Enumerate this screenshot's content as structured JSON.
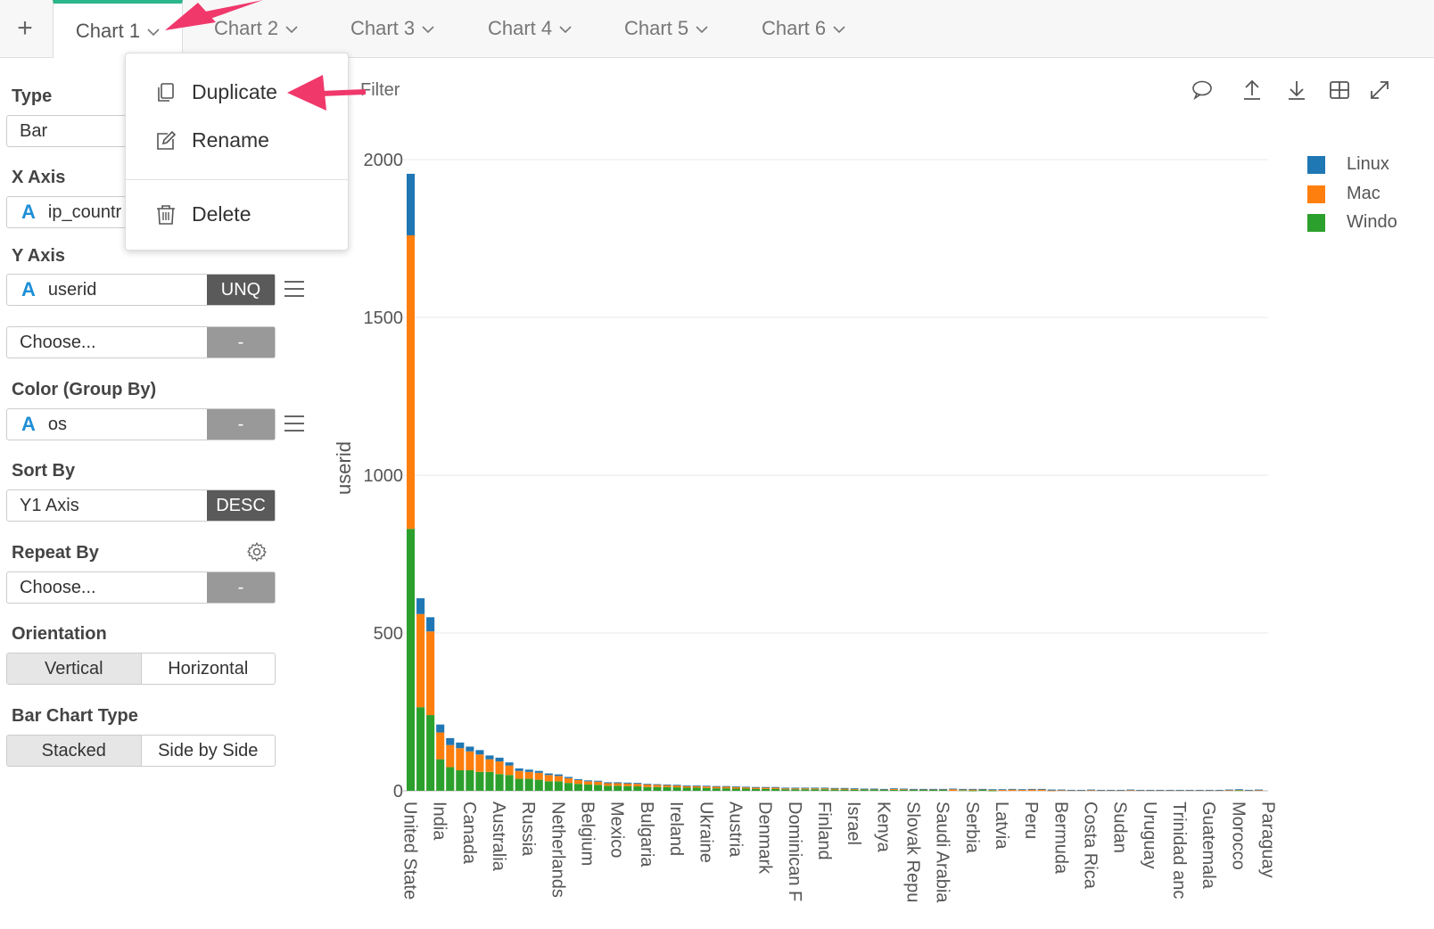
{
  "tabs": {
    "add_label": "+",
    "items": [
      {
        "label": "Chart 1"
      },
      {
        "label": "Chart 2"
      },
      {
        "label": "Chart 3"
      },
      {
        "label": "Chart 4"
      },
      {
        "label": "Chart 5"
      },
      {
        "label": "Chart 6"
      }
    ]
  },
  "context_menu": {
    "duplicate": "Duplicate",
    "rename": "Rename",
    "delete": "Delete"
  },
  "sidebar": {
    "type_label": "Type",
    "type_value": "Bar",
    "x_axis_label": "X Axis",
    "x_axis_value": "ip_countr",
    "y_axis_label": "Y Axis",
    "y_axis_value": "userid",
    "y_axis_agg": "UNQ",
    "y_axis2_value": "Choose...",
    "y_axis2_agg": "-",
    "color_label": "Color (Group By)",
    "color_value": "os",
    "color_btn": "-",
    "sort_label": "Sort By",
    "sort_value": "Y1 Axis",
    "sort_order": "DESC",
    "repeat_label": "Repeat By",
    "repeat_value": "Choose...",
    "repeat_btn": "-",
    "orientation_label": "Orientation",
    "orientation_options": [
      "Vertical",
      "Horizontal"
    ],
    "orientation_selected": "Vertical",
    "bar_type_label": "Bar Chart Type",
    "bar_type_options": [
      "Stacked",
      "Side by Side"
    ],
    "bar_type_selected": "Stacked",
    "type_icon": "a-text-icon"
  },
  "toolbar": {
    "filter_label": "Filter",
    "icons": [
      "comment-icon",
      "upload-icon",
      "download-icon",
      "table-icon",
      "expand-icon"
    ]
  },
  "colors": {
    "accent": "#2bb58a",
    "linux": "#1f77b4",
    "mac": "#ff7f0e",
    "windows": "#2ca02c",
    "annotation_arrow": "#f0386b"
  },
  "chart_data": {
    "type": "bar",
    "stacked": true,
    "ylabel": "userid",
    "ylim": [
      0,
      2000
    ],
    "yticks": [
      0,
      500,
      1000,
      1500,
      2000
    ],
    "grid": true,
    "legend_position": "top-right",
    "x_tick_labels": [
      "United State",
      "India",
      "Canada",
      "Australia",
      "Russia",
      "Netherlands",
      "Belgium",
      "Mexico",
      "Bulgaria",
      "Ireland",
      "Ukraine",
      "Austria",
      "Denmark",
      "Dominican F",
      "Finland",
      "Israel",
      "Kenya",
      "Slovak Repu",
      "Saudi Arabia",
      "Serbia",
      "Latvia",
      "Peru",
      "Bermuda",
      "Costa Rica",
      "Sudan",
      "Uruguay",
      "Trinidad anc",
      "Guatemala",
      "Morocco",
      "Paraguay"
    ],
    "bar_count": 87,
    "series": [
      {
        "name": "Linux",
        "values": [
          195,
          50,
          45,
          25,
          22,
          18,
          15,
          14,
          12,
          12,
          10,
          8,
          7,
          6,
          5,
          5,
          4,
          3,
          3,
          3,
          3,
          3,
          3,
          3,
          2,
          2,
          2,
          2,
          2,
          2,
          2,
          2,
          2,
          2,
          2,
          2,
          2,
          2,
          2,
          2,
          2,
          2,
          2,
          2,
          2,
          2,
          1,
          1,
          1,
          2,
          2,
          1,
          1,
          1,
          1,
          2,
          1,
          1,
          1,
          1,
          1,
          2,
          1,
          1,
          1,
          3,
          1,
          1,
          1,
          1,
          1,
          1,
          1,
          1,
          1,
          1,
          1,
          1,
          1,
          1,
          1,
          1,
          1,
          1,
          1,
          1,
          1
        ]
      },
      {
        "name": "Mac",
        "values": [
          930,
          295,
          265,
          85,
          70,
          70,
          60,
          55,
          40,
          40,
          30,
          25,
          22,
          22,
          20,
          17,
          15,
          12,
          10,
          10,
          8,
          8,
          8,
          8,
          8,
          7,
          6,
          6,
          5,
          5,
          5,
          5,
          5,
          5,
          4,
          4,
          4,
          4,
          3,
          3,
          3,
          3,
          3,
          3,
          3,
          2,
          2,
          2,
          2,
          3,
          2,
          2,
          2,
          2,
          2,
          5,
          3,
          4,
          2,
          3,
          4,
          4,
          4,
          5,
          5,
          1,
          3,
          2,
          2,
          3,
          2,
          2,
          2,
          3,
          2,
          2,
          2,
          2,
          2,
          2,
          2,
          2,
          2,
          3,
          2,
          2,
          3
        ]
      },
      {
        "name": "Windows",
        "values": [
          830,
          265,
          240,
          100,
          75,
          65,
          65,
          60,
          60,
          53,
          50,
          38,
          38,
          35,
          30,
          30,
          25,
          22,
          20,
          19,
          16,
          16,
          15,
          14,
          12,
          12,
          12,
          11,
          10,
          10,
          9,
          8,
          8,
          7,
          7,
          6,
          6,
          6,
          5,
          5,
          5,
          5,
          5,
          4,
          4,
          4,
          4,
          4,
          3,
          3,
          3,
          3,
          3,
          3,
          3,
          0,
          2,
          1,
          3,
          1,
          0,
          0,
          0,
          0,
          0,
          0,
          0,
          0,
          0,
          0,
          0,
          0,
          0,
          0,
          0,
          0,
          0,
          0,
          0,
          0,
          0,
          0,
          0,
          0,
          2,
          0,
          0
        ]
      }
    ],
    "legend": [
      "Linux",
      "Mac",
      "Windo"
    ]
  }
}
